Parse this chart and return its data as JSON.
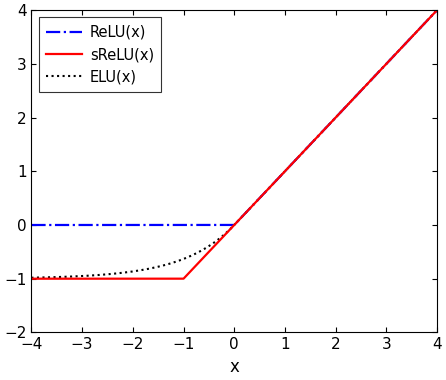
{
  "xlim": [
    -4,
    4
  ],
  "ylim": [
    -2,
    4
  ],
  "xlabel": "x",
  "xticks": [
    -4,
    -3,
    -2,
    -1,
    0,
    1,
    2,
    3,
    4
  ],
  "yticks": [
    -2,
    -1,
    0,
    1,
    2,
    3,
    4
  ],
  "relu_color": "#0000FF",
  "srelu_color": "#FF0000",
  "elu_color": "#000000",
  "relu_label": "ReLU(x)",
  "srelu_label": "sReLU(x)",
  "elu_label": "ELU(x)",
  "relu_linestyle": "-.",
  "srelu_linestyle": "-",
  "elu_linestyle": ":",
  "linewidth": 1.6,
  "elu_linewidth": 1.5,
  "figsize": [
    4.46,
    3.8
  ],
  "dpi": 100,
  "legend_loc": "upper left",
  "legend_fontsize": 10.5,
  "tick_fontsize": 11,
  "label_fontsize": 12,
  "bg_color": "#ffffff"
}
